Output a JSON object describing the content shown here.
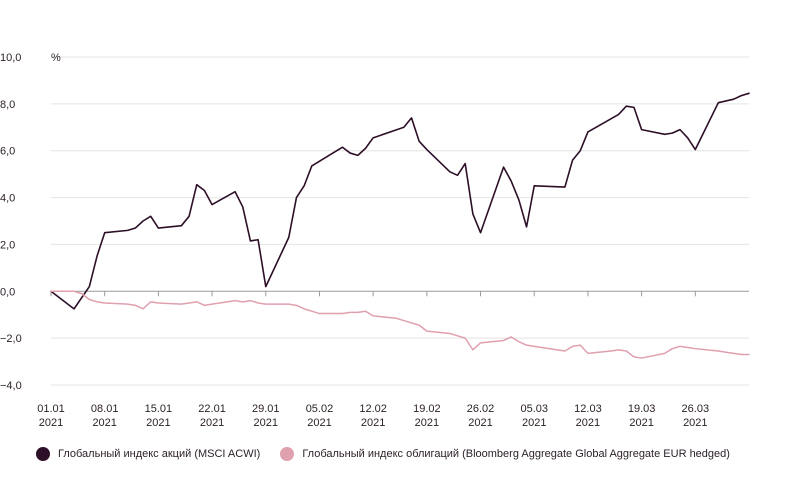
{
  "chart_data": {
    "type": "line",
    "y_unit": "%",
    "ylim": [
      -4.0,
      10.0
    ],
    "y_ticks": [
      {
        "v": 10,
        "label": "10,0"
      },
      {
        "v": 8,
        "label": "8,0"
      },
      {
        "v": 6,
        "label": "6,0"
      },
      {
        "v": 4,
        "label": "4,0"
      },
      {
        "v": 2,
        "label": "2,0"
      },
      {
        "v": 0,
        "label": "0,0"
      },
      {
        "v": -2,
        "label": "−2,0"
      },
      {
        "v": -4,
        "label": "−4,0"
      }
    ],
    "x_range": [
      "2021-01-01",
      "2021-04-02"
    ],
    "x_ticks": [
      {
        "date": "2021-01-01",
        "line1": "01.01",
        "line2": "2021"
      },
      {
        "date": "2021-01-08",
        "line1": "08.01",
        "line2": "2021"
      },
      {
        "date": "2021-01-15",
        "line1": "15.01",
        "line2": "2021"
      },
      {
        "date": "2021-01-22",
        "line1": "22.01",
        "line2": "2021"
      },
      {
        "date": "2021-01-29",
        "line1": "29.01",
        "line2": "2021"
      },
      {
        "date": "2021-02-05",
        "line1": "05.02",
        "line2": "2021"
      },
      {
        "date": "2021-02-12",
        "line1": "12.02",
        "line2": "2021"
      },
      {
        "date": "2021-02-19",
        "line1": "19.02",
        "line2": "2021"
      },
      {
        "date": "2021-02-26",
        "line1": "26.02",
        "line2": "2021"
      },
      {
        "date": "2021-03-05",
        "line1": "05.03",
        "line2": "2021"
      },
      {
        "date": "2021-03-12",
        "line1": "12.03",
        "line2": "2021"
      },
      {
        "date": "2021-03-19",
        "line1": "19.03",
        "line2": "2021"
      },
      {
        "date": "2021-03-26",
        "line1": "26.03",
        "line2": "2021"
      }
    ],
    "grid": true,
    "legend_position": "bottom",
    "series": [
      {
        "name": "Глобальный индекс акций (MSCI ACWI)",
        "color": "#2d0f27",
        "points": [
          [
            "2021-01-01",
            0.0
          ],
          [
            "2021-01-04",
            -0.75
          ],
          [
            "2021-01-06",
            0.2
          ],
          [
            "2021-01-07",
            1.5
          ],
          [
            "2021-01-08",
            2.5
          ],
          [
            "2021-01-11",
            2.6
          ],
          [
            "2021-01-12",
            2.7
          ],
          [
            "2021-01-13",
            3.0
          ],
          [
            "2021-01-14",
            3.2
          ],
          [
            "2021-01-15",
            2.7
          ],
          [
            "2021-01-18",
            2.8
          ],
          [
            "2021-01-19",
            3.2
          ],
          [
            "2021-01-20",
            4.55
          ],
          [
            "2021-01-21",
            4.3
          ],
          [
            "2021-01-22",
            3.7
          ],
          [
            "2021-01-25",
            4.25
          ],
          [
            "2021-01-26",
            3.6
          ],
          [
            "2021-01-27",
            2.15
          ],
          [
            "2021-01-28",
            2.2
          ],
          [
            "2021-01-29",
            0.2
          ],
          [
            "2021-02-01",
            2.3
          ],
          [
            "2021-02-02",
            4.0
          ],
          [
            "2021-02-03",
            4.5
          ],
          [
            "2021-02-04",
            5.35
          ],
          [
            "2021-02-08",
            6.15
          ],
          [
            "2021-02-09",
            5.9
          ],
          [
            "2021-02-10",
            5.8
          ],
          [
            "2021-02-11",
            6.1
          ],
          [
            "2021-02-12",
            6.55
          ],
          [
            "2021-02-16",
            7.0
          ],
          [
            "2021-02-17",
            7.4
          ],
          [
            "2021-02-18",
            6.4
          ],
          [
            "2021-02-19",
            6.05
          ],
          [
            "2021-02-22",
            5.1
          ],
          [
            "2021-02-23",
            4.95
          ],
          [
            "2021-02-24",
            5.45
          ],
          [
            "2021-02-25",
            3.3
          ],
          [
            "2021-02-26",
            2.5
          ],
          [
            "2021-03-01",
            5.3
          ],
          [
            "2021-03-02",
            4.7
          ],
          [
            "2021-03-03",
            3.9
          ],
          [
            "2021-03-04",
            2.75
          ],
          [
            "2021-03-05",
            4.5
          ],
          [
            "2021-03-09",
            4.45
          ],
          [
            "2021-03-10",
            5.6
          ],
          [
            "2021-03-11",
            6.0
          ],
          [
            "2021-03-12",
            6.8
          ],
          [
            "2021-03-16",
            7.55
          ],
          [
            "2021-03-17",
            7.9
          ],
          [
            "2021-03-18",
            7.85
          ],
          [
            "2021-03-19",
            6.9
          ],
          [
            "2021-03-22",
            6.7
          ],
          [
            "2021-03-23",
            6.75
          ],
          [
            "2021-03-24",
            6.9
          ],
          [
            "2021-03-25",
            6.55
          ],
          [
            "2021-03-26",
            6.05
          ],
          [
            "2021-03-29",
            8.05
          ],
          [
            "2021-03-31",
            8.2
          ],
          [
            "2021-04-01",
            8.35
          ],
          [
            "2021-04-02",
            8.45
          ]
        ]
      },
      {
        "name": "Глобальный индекс облигаций (Bloomberg Aggregate Global Aggregate EUR hedged)",
        "color": "#e0a0ae",
        "points": [
          [
            "2021-01-01",
            0.0
          ],
          [
            "2021-01-04",
            0.0
          ],
          [
            "2021-01-05",
            -0.1
          ],
          [
            "2021-01-06",
            -0.35
          ],
          [
            "2021-01-07",
            -0.45
          ],
          [
            "2021-01-08",
            -0.5
          ],
          [
            "2021-01-11",
            -0.55
          ],
          [
            "2021-01-12",
            -0.6
          ],
          [
            "2021-01-13",
            -0.75
          ],
          [
            "2021-01-14",
            -0.45
          ],
          [
            "2021-01-15",
            -0.5
          ],
          [
            "2021-01-18",
            -0.55
          ],
          [
            "2021-01-19",
            -0.5
          ],
          [
            "2021-01-20",
            -0.45
          ],
          [
            "2021-01-21",
            -0.6
          ],
          [
            "2021-01-22",
            -0.55
          ],
          [
            "2021-01-25",
            -0.4
          ],
          [
            "2021-01-26",
            -0.45
          ],
          [
            "2021-01-27",
            -0.4
          ],
          [
            "2021-01-28",
            -0.5
          ],
          [
            "2021-01-29",
            -0.55
          ],
          [
            "2021-02-01",
            -0.55
          ],
          [
            "2021-02-02",
            -0.6
          ],
          [
            "2021-02-03",
            -0.75
          ],
          [
            "2021-02-04",
            -0.85
          ],
          [
            "2021-02-05",
            -0.95
          ],
          [
            "2021-02-08",
            -0.95
          ],
          [
            "2021-02-09",
            -0.9
          ],
          [
            "2021-02-10",
            -0.9
          ],
          [
            "2021-02-11",
            -0.85
          ],
          [
            "2021-02-12",
            -1.05
          ],
          [
            "2021-02-15",
            -1.15
          ],
          [
            "2021-02-16",
            -1.25
          ],
          [
            "2021-02-17",
            -1.35
          ],
          [
            "2021-02-18",
            -1.45
          ],
          [
            "2021-02-19",
            -1.7
          ],
          [
            "2021-02-22",
            -1.8
          ],
          [
            "2021-02-23",
            -1.9
          ],
          [
            "2021-02-24",
            -2.0
          ],
          [
            "2021-02-25",
            -2.5
          ],
          [
            "2021-02-26",
            -2.2
          ],
          [
            "2021-03-01",
            -2.1
          ],
          [
            "2021-03-02",
            -1.95
          ],
          [
            "2021-03-03",
            -2.15
          ],
          [
            "2021-03-04",
            -2.3
          ],
          [
            "2021-03-05",
            -2.35
          ],
          [
            "2021-03-08",
            -2.5
          ],
          [
            "2021-03-09",
            -2.55
          ],
          [
            "2021-03-10",
            -2.35
          ],
          [
            "2021-03-11",
            -2.3
          ],
          [
            "2021-03-12",
            -2.65
          ],
          [
            "2021-03-15",
            -2.55
          ],
          [
            "2021-03-16",
            -2.5
          ],
          [
            "2021-03-17",
            -2.55
          ],
          [
            "2021-03-18",
            -2.8
          ],
          [
            "2021-03-19",
            -2.85
          ],
          [
            "2021-03-22",
            -2.65
          ],
          [
            "2021-03-23",
            -2.45
          ],
          [
            "2021-03-24",
            -2.35
          ],
          [
            "2021-03-25",
            -2.4
          ],
          [
            "2021-03-26",
            -2.45
          ],
          [
            "2021-03-29",
            -2.55
          ],
          [
            "2021-03-30",
            -2.6
          ],
          [
            "2021-03-31",
            -2.65
          ],
          [
            "2021-04-01",
            -2.7
          ],
          [
            "2021-04-02",
            -2.7
          ]
        ]
      }
    ]
  }
}
